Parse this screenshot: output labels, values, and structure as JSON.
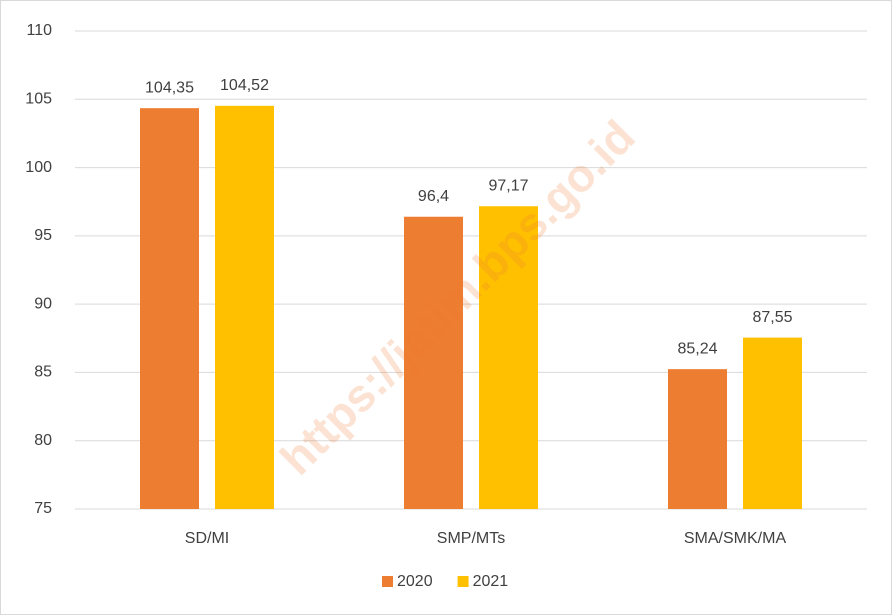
{
  "chart_data": {
    "type": "bar",
    "categories": [
      "SD/MI",
      "SMP/MTs",
      "SMA/SMK/MA"
    ],
    "series": [
      {
        "name": "2020",
        "color": "#ED7D31",
        "values": [
          104.35,
          96.4,
          85.24
        ],
        "value_labels": [
          "104,35",
          "96,4",
          "85,24"
        ]
      },
      {
        "name": "2021",
        "color": "#FFC000",
        "values": [
          104.52,
          97.17,
          87.55
        ],
        "value_labels": [
          "104,52",
          "97,17",
          "87,55"
        ]
      }
    ],
    "ylim": [
      75,
      110
    ],
    "yticks": [
      75,
      80,
      85,
      90,
      95,
      100,
      105,
      110
    ],
    "grid": true,
    "legend": "bottom",
    "watermark": "https://jatim.bps.go.id"
  }
}
